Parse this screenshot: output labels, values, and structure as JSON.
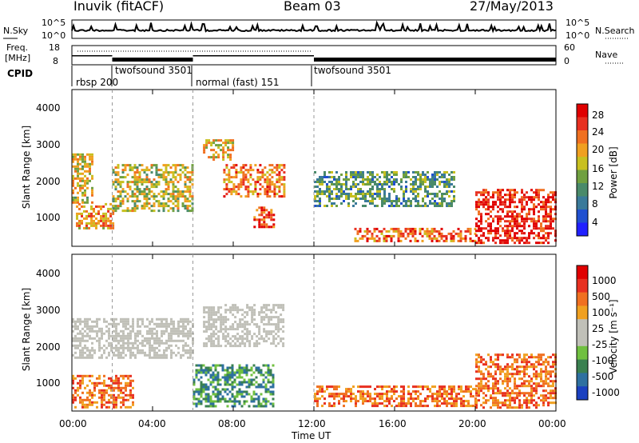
{
  "header": {
    "station": "Inuvik (fitACF)",
    "beam": "Beam 03",
    "date": "27/May/2013"
  },
  "noise_panel": {
    "left_label": "N.Sky",
    "right_label": "N.Search",
    "ticks": [
      "10^5",
      "10^0"
    ],
    "right_ticks": [
      "10^5",
      "10^0"
    ]
  },
  "freq_panel": {
    "left_label_1": "Freq.",
    "left_label_2": "[MHz]",
    "right_label": "Nave",
    "left_ticks": [
      "18",
      "8"
    ],
    "right_ticks": [
      "60",
      "0"
    ]
  },
  "cpid": {
    "label": "CPID",
    "segments": [
      {
        "name": "rbsp 200",
        "start": 0.0,
        "end": 2.0
      },
      {
        "name": "twofsound 3501",
        "start": 2.0,
        "end": 6.0
      },
      {
        "name": "normal (fast) 151",
        "start": 6.0,
        "end": 12.0
      },
      {
        "name": "twofsound 3501",
        "start": 12.0,
        "end": 24.0
      }
    ]
  },
  "chart_data": [
    {
      "type": "heatmap",
      "name": "power",
      "ylabel": "Slant Range [km]",
      "xlim": [
        0,
        24
      ],
      "ylim": [
        180,
        4600
      ],
      "yticks": [
        "4000",
        "3000",
        "2000",
        "1000"
      ],
      "colorbar": {
        "label": "Power [dB]",
        "ticks": [
          "28",
          "24",
          "20",
          "16",
          "12",
          "8",
          "4"
        ],
        "colors": [
          "#2020ff",
          "#2050d0",
          "#3a7a9a",
          "#4a8a6a",
          "#70a040",
          "#c8c020",
          "#f0a020",
          "#f07020",
          "#e83020",
          "#e00000"
        ]
      },
      "echo_regions": [
        {
          "t0": 0.0,
          "t1": 1.0,
          "r0": 1400,
          "r1": 2800,
          "intensity": 0.6
        },
        {
          "t0": 0.2,
          "t1": 2.0,
          "r0": 700,
          "r1": 1400,
          "intensity": 0.7
        },
        {
          "t0": 2.0,
          "t1": 6.0,
          "r0": 1200,
          "r1": 2500,
          "intensity": 0.55
        },
        {
          "t0": 6.5,
          "t1": 8.0,
          "r0": 2600,
          "r1": 3200,
          "intensity": 0.6
        },
        {
          "t0": 7.5,
          "t1": 10.5,
          "r0": 1600,
          "r1": 2500,
          "intensity": 0.75
        },
        {
          "t0": 9.0,
          "t1": 10.0,
          "r0": 700,
          "r1": 1300,
          "intensity": 0.9
        },
        {
          "t0": 12.0,
          "t1": 19.0,
          "r0": 1300,
          "r1": 2300,
          "intensity": 0.35
        },
        {
          "t0": 14.0,
          "t1": 20.0,
          "r0": 300,
          "r1": 700,
          "intensity": 0.8
        },
        {
          "t0": 20.0,
          "t1": 24.0,
          "r0": 300,
          "r1": 1800,
          "intensity": 0.95
        }
      ]
    },
    {
      "type": "heatmap",
      "name": "velocity",
      "ylabel": "Slant Range [km]",
      "xlabel": "Time UT",
      "xlim": [
        0,
        24
      ],
      "ylim": [
        180,
        4600
      ],
      "xticks": [
        "00:00",
        "04:00",
        "08:00",
        "12:00",
        "16:00",
        "20:00",
        "00:00"
      ],
      "yticks": [
        "4000",
        "3000",
        "2000",
        "1000"
      ],
      "colorbar": {
        "label": "Velocity [m s⁻¹]",
        "ticks": [
          "1000",
          "500",
          "100",
          "25",
          "-25",
          "-100",
          "-500",
          "-1000"
        ],
        "colors": [
          "#1a40c0",
          "#2e70a0",
          "#3a8050",
          "#70c040",
          "#c0c0b8",
          "#c0c0b8",
          "#f0a020",
          "#f07020",
          "#e83020",
          "#e00000"
        ]
      },
      "echo_regions": [
        {
          "t0": 0.0,
          "t1": 6.0,
          "r0": 1700,
          "r1": 2800,
          "class": "ground"
        },
        {
          "t0": 6.5,
          "t1": 10.5,
          "r0": 2000,
          "r1": 3200,
          "class": "ground"
        },
        {
          "t0": 0.0,
          "t1": 3.0,
          "r0": 300,
          "r1": 1200,
          "class": "away"
        },
        {
          "t0": 6.0,
          "t1": 10.0,
          "r0": 300,
          "r1": 1500,
          "class": "toward"
        },
        {
          "t0": 12.0,
          "t1": 20.0,
          "r0": 300,
          "r1": 900,
          "class": "away"
        },
        {
          "t0": 20.0,
          "t1": 24.0,
          "r0": 300,
          "r1": 1800,
          "class": "away"
        }
      ]
    }
  ]
}
